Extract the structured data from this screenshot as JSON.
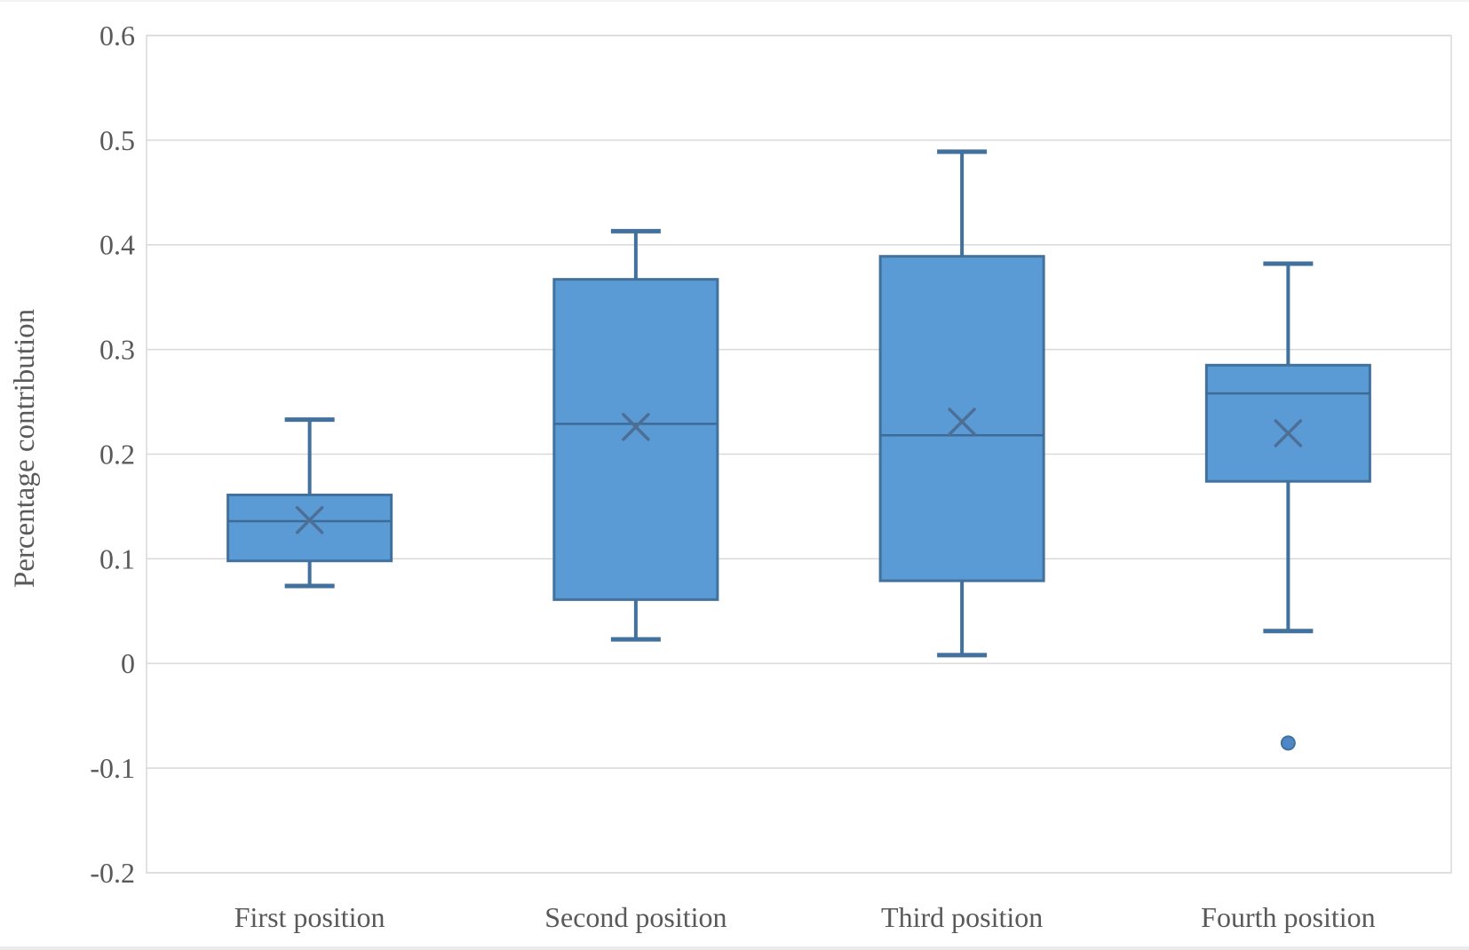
{
  "chart_data": {
    "type": "boxplot",
    "title": "",
    "xlabel": "",
    "ylabel": "Percentage contribution",
    "ylim": [
      -0.2,
      0.6
    ],
    "grid": true,
    "legend": "none",
    "yticks": [
      {
        "value": 0.6,
        "label": "0.6"
      },
      {
        "value": 0.5,
        "label": "0.5"
      },
      {
        "value": 0.4,
        "label": "0.4"
      },
      {
        "value": 0.3,
        "label": "0.3"
      },
      {
        "value": 0.2,
        "label": "0.2"
      },
      {
        "value": 0.1,
        "label": "0.1"
      },
      {
        "value": 0,
        "label": "0"
      },
      {
        "value": -0.1,
        "label": "-0.1"
      },
      {
        "value": -0.2,
        "label": "-0.2"
      }
    ],
    "categories": [
      "First position",
      "Second position",
      "Third position",
      "Fourth position"
    ],
    "series": [
      {
        "name": "First position",
        "whisker_low": 0.074,
        "q1": 0.098,
        "median": 0.136,
        "mean": 0.137,
        "q3": 0.161,
        "whisker_high": 0.233,
        "outliers": []
      },
      {
        "name": "Second position",
        "whisker_low": 0.023,
        "q1": 0.061,
        "median": 0.229,
        "mean": 0.226,
        "q3": 0.367,
        "whisker_high": 0.413,
        "outliers": []
      },
      {
        "name": "Third position",
        "whisker_low": 0.008,
        "q1": 0.079,
        "median": 0.218,
        "mean": 0.231,
        "q3": 0.389,
        "whisker_high": 0.489,
        "outliers": []
      },
      {
        "name": "Fourth position",
        "whisker_low": 0.031,
        "q1": 0.174,
        "median": 0.258,
        "mean": 0.22,
        "q3": 0.285,
        "whisker_high": 0.382,
        "outliers": [
          -0.076
        ]
      }
    ],
    "colors": {
      "box_fill": "#5B9BD5",
      "box_line": "#41719C",
      "median_line": "#3E6A97",
      "mean_marker": "#4D6F96",
      "outlier_fill": "#4E87C7",
      "gridline": "#D9D9D9",
      "plot_border": "#D9D9D9",
      "text": "#595959",
      "background": "#FFFFFF"
    }
  }
}
